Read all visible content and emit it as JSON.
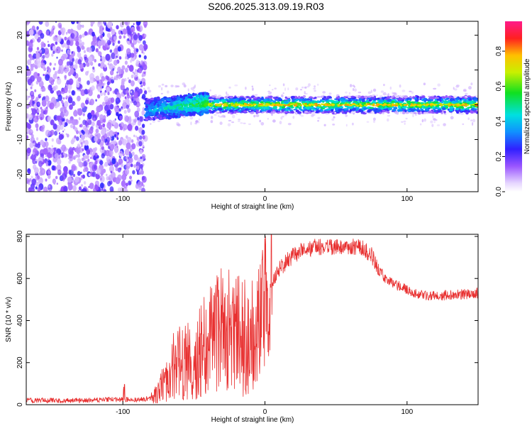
{
  "title": "S206.2025.313.09.19.R03",
  "colors": {
    "snr_line": "#e83030",
    "background": "#ffffff",
    "axis": "#000000"
  },
  "chart_data": [
    {
      "type": "heatmap",
      "name": "spectrogram",
      "xlabel": "Height of straight line (km)",
      "ylabel": "Frequency (Hz)",
      "xlim": [
        -168,
        150
      ],
      "ylim": [
        -25,
        24
      ],
      "xticks": [
        -100,
        0,
        100
      ],
      "xtick_labels": [
        "-100",
        "0",
        "100"
      ],
      "yticks": [
        -20,
        -10,
        0,
        10,
        20
      ],
      "ytick_labels": [
        "-20",
        "-10",
        "0",
        "10",
        "20"
      ],
      "grid": false,
      "colorbar": {
        "label": "Normalized spectral amplitude",
        "range": [
          0,
          0.97
        ],
        "ticks": [
          0.0,
          0.2,
          0.4,
          0.6,
          0.8
        ],
        "tick_labels": [
          "0.0",
          "0.2",
          "0.4",
          "0.6",
          "0.8"
        ],
        "colormap": "rainbow"
      },
      "regions": [
        {
          "x": [
            -168,
            -84
          ],
          "description": "broadband noise",
          "amplitude": 0.15,
          "freq_spread": 24
        },
        {
          "x": [
            -84,
            -40
          ],
          "description": "emerging tone",
          "amplitude": 0.4,
          "freq_center": -1.5,
          "freq_spread": 3
        },
        {
          "x": [
            -40,
            150
          ],
          "description": "stable tone",
          "amplitude": 0.85,
          "freq_center": 0,
          "freq_spread": 1
        }
      ]
    },
    {
      "type": "line",
      "name": "snr",
      "xlabel": "Height of straight line (km)",
      "ylabel": "SNR (10 * v/v)",
      "xlim": [
        -168,
        150
      ],
      "ylim": [
        0,
        810
      ],
      "xticks": [
        -100,
        0,
        100
      ],
      "xtick_labels": [
        "-100",
        "0",
        "100"
      ],
      "yticks": [
        0,
        200,
        400,
        600,
        800
      ],
      "ytick_labels": [
        "0",
        "200",
        "400",
        "600",
        "800"
      ],
      "grid": false,
      "series": [
        {
          "x": [
            -168,
            -150,
            -130,
            -110,
            -100,
            -90,
            -80,
            -75,
            -70,
            -65,
            -60,
            -55,
            -50,
            -45,
            -40,
            -35,
            -30,
            -25,
            -20,
            -15,
            -10,
            -5,
            0,
            5,
            10,
            15,
            20,
            25,
            30,
            35,
            40,
            45,
            50,
            55,
            60,
            65,
            70,
            75,
            80,
            85,
            90,
            95,
            100,
            105,
            110,
            115,
            120,
            125,
            130,
            140,
            150
          ],
          "values": [
            20,
            20,
            20,
            25,
            25,
            25,
            30,
            60,
            120,
            180,
            200,
            200,
            230,
            260,
            290,
            320,
            360,
            380,
            340,
            330,
            320,
            360,
            480,
            590,
            640,
            680,
            710,
            730,
            740,
            750,
            750,
            750,
            750,
            750,
            750,
            750,
            740,
            710,
            640,
            600,
            580,
            560,
            545,
            535,
            525,
            520,
            520,
            520,
            520,
            525,
            530
          ]
        }
      ]
    }
  ]
}
